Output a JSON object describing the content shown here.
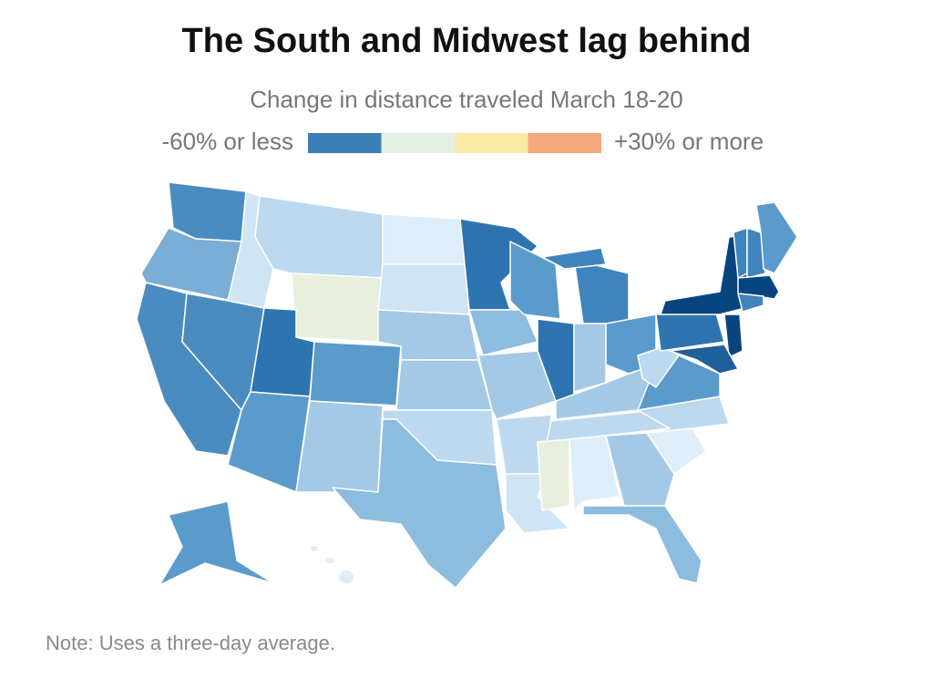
{
  "title": "The South and Midwest lag behind",
  "subtitle": "Change in distance traveled March 18-20",
  "legend": {
    "low_label": "-60% or less",
    "high_label": "+30% or more",
    "colors": [
      "#3b7fb6",
      "#e4efe4",
      "#fbe9a6",
      "#f5a97c"
    ]
  },
  "note": "Note: Uses a three-day average."
}
